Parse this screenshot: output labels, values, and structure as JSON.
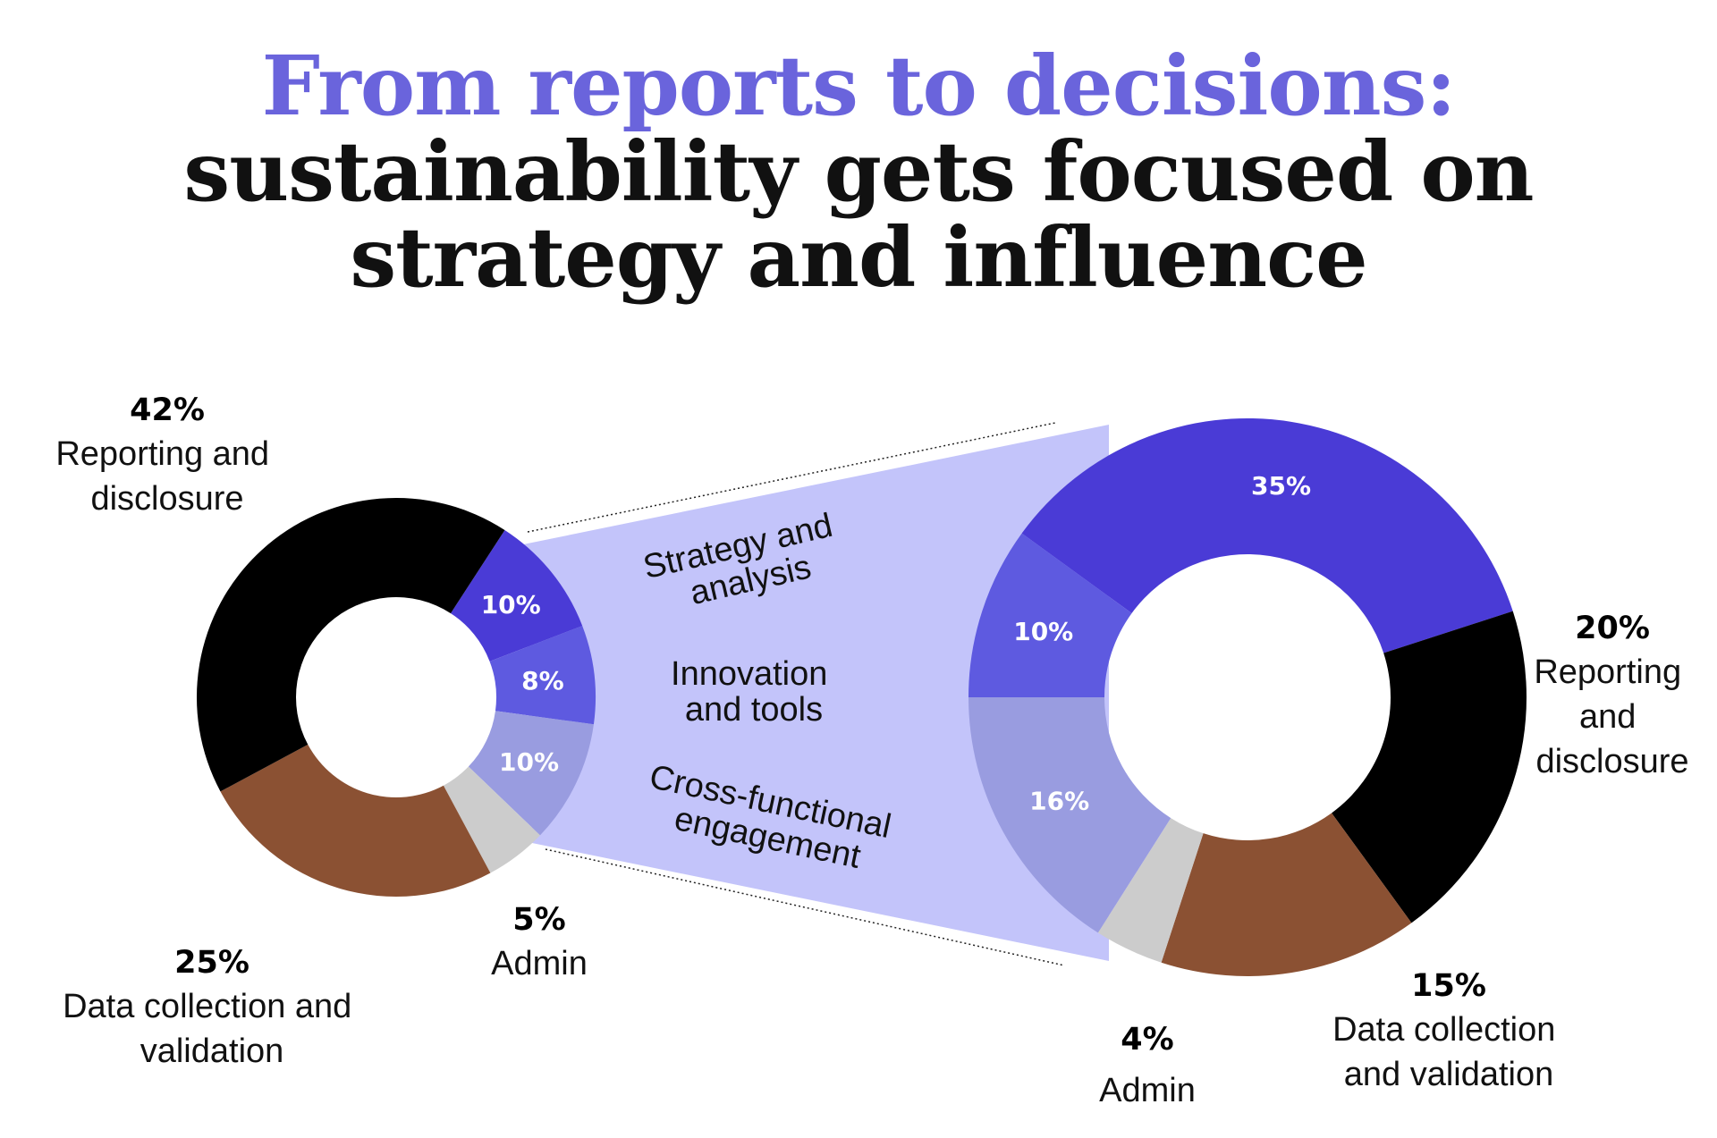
{
  "title": {
    "line1": "From reports to decisions:",
    "line2": "sustainability gets focused on",
    "line3": "strategy and influence"
  },
  "colors": {
    "title_accent": "#6a64dc",
    "strategy": "#4a3bd6",
    "innovation": "#5e5ae0",
    "cross_functional": "#999ce0",
    "admin": "#cccccc",
    "data_collection": "#8b5133",
    "reporting": "#000000",
    "band": "#c3c4fa"
  },
  "chart_data": [
    {
      "type": "pie",
      "name": "before",
      "slices": [
        {
          "label": "Strategy and analysis",
          "value": 10,
          "color": "#4a3bd6",
          "display": "10%"
        },
        {
          "label": "Innovation and tools",
          "value": 8,
          "color": "#5e5ae0",
          "display": "8%"
        },
        {
          "label": "Cross-functional engagement",
          "value": 10,
          "color": "#999ce0",
          "display": "10%"
        },
        {
          "label": "Admin",
          "value": 5,
          "color": "#cccccc",
          "display": "5%"
        },
        {
          "label": "Data collection and validation",
          "value": 25,
          "color": "#8b5133",
          "display": "25%"
        },
        {
          "label": "Reporting and disclosure",
          "value": 42,
          "color": "#000000",
          "display": "42%"
        }
      ],
      "annotations": {
        "reporting": {
          "pct": "42%",
          "lines": [
            "Reporting and",
            "disclosure"
          ]
        },
        "data": {
          "pct": "25%",
          "lines": [
            "Data collection and",
            "validation"
          ]
        },
        "admin": {
          "pct": "5%",
          "lines": [
            "Admin"
          ]
        }
      }
    },
    {
      "type": "pie",
      "name": "after",
      "slices": [
        {
          "label": "Strategy and analysis",
          "value": 35,
          "color": "#4a3bd6",
          "display": "35%"
        },
        {
          "label": "Reporting and disclosure",
          "value": 20,
          "color": "#000000",
          "display": "20%"
        },
        {
          "label": "Data collection and validation",
          "value": 15,
          "color": "#8b5133",
          "display": "15%"
        },
        {
          "label": "Admin",
          "value": 4,
          "color": "#cccccc",
          "display": "4%"
        },
        {
          "label": "Cross-functional engagement",
          "value": 16,
          "color": "#999ce0",
          "display": "16%"
        },
        {
          "label": "Innovation and tools",
          "value": 10,
          "color": "#5e5ae0",
          "display": "10%"
        }
      ],
      "annotations": {
        "reporting": {
          "pct": "20%",
          "lines": [
            "Reporting",
            "and",
            "disclosure"
          ]
        },
        "data": {
          "pct": "15%",
          "lines": [
            "Data collection",
            "and validation"
          ]
        },
        "admin": {
          "pct": "4%",
          "lines": [
            "Admin"
          ]
        }
      }
    }
  ],
  "band_labels": {
    "strategy": [
      "Strategy and",
      "analysis"
    ],
    "innovation": [
      "Innovation",
      "and tools"
    ],
    "cross": [
      "Cross-functional",
      "engagement"
    ]
  }
}
